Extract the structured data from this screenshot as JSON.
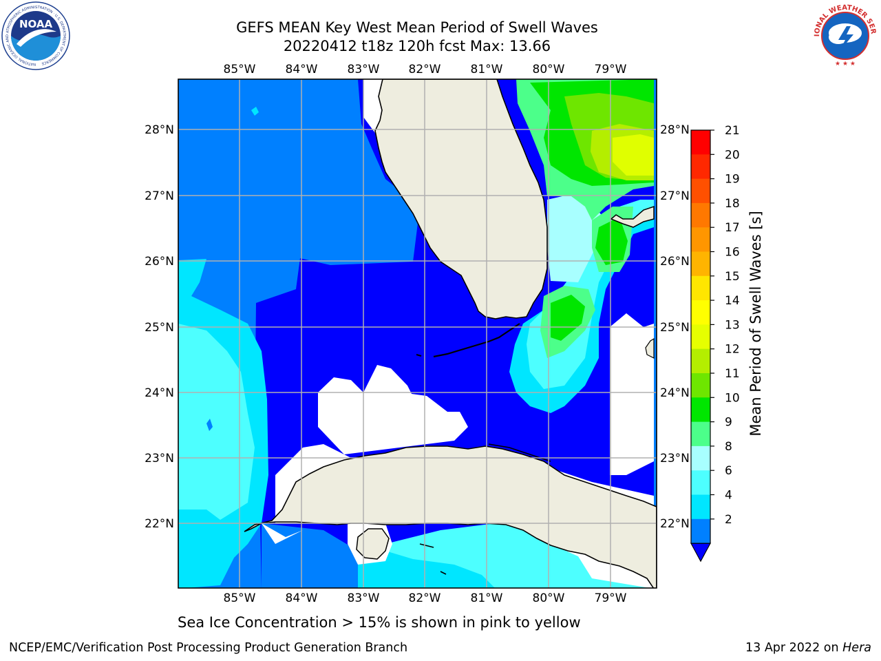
{
  "title": {
    "line1": "GEFS MEAN Key West Mean Period of Swell Waves",
    "line2": "20220412 t18z 120h fcst   Max: 13.66"
  },
  "logos": {
    "noaa": "NOAA",
    "noaa_ring": "NATIONAL OCEANIC AND ATMOSPHERIC ADMINISTRATION · U.S. DEPARTMENT OF COMMERCE",
    "nws_ring": "NATIONAL WEATHER SERVICE"
  },
  "map": {
    "lon_labels": [
      "85°W",
      "84°W",
      "83°W",
      "82°W",
      "81°W",
      "80°W",
      "79°W"
    ],
    "lat_labels": [
      "28°N",
      "27°N",
      "26°N",
      "25°N",
      "24°N",
      "23°N",
      "22°N"
    ],
    "land_color": "#eeeddf",
    "colors": {
      "c2": "#0000ff",
      "c2b": "#0a3cf0",
      "c4": "#0080ff",
      "c6": "#00e6ff",
      "c8": "#4dffff",
      "c9": "#a8ffff",
      "c10": "#4cff8a",
      "c11": "#00e600",
      "c12": "#6ee600",
      "c13": "#b4ee00",
      "c14": "#e0ff00"
    }
  },
  "colorbar": {
    "label": "Mean Period of Swell Waves [s]",
    "ticks": [
      "21",
      "20",
      "19",
      "18",
      "17",
      "16",
      "15",
      "14",
      "13",
      "12",
      "11",
      "10",
      "9",
      "8",
      "6",
      "4",
      "2"
    ],
    "colors": [
      "#ff0000",
      "#ff2800",
      "#ff5000",
      "#ff7800",
      "#ff9600",
      "#ffb400",
      "#ffe600",
      "#ffff00",
      "#e6ff00",
      "#b4ee00",
      "#6ee600",
      "#00e600",
      "#4cff8a",
      "#a8ffff",
      "#4dffff",
      "#00e6ff",
      "#0080ff"
    ],
    "extend_color": "#0000ff"
  },
  "caption": "Sea Ice Concentration > 15% is shown in pink to yellow",
  "footer": {
    "left": "NCEP/EMC/Verification Post Processing Product Generation Branch",
    "right_date": "13 Apr 2022 on ",
    "right_host": "Hera"
  }
}
